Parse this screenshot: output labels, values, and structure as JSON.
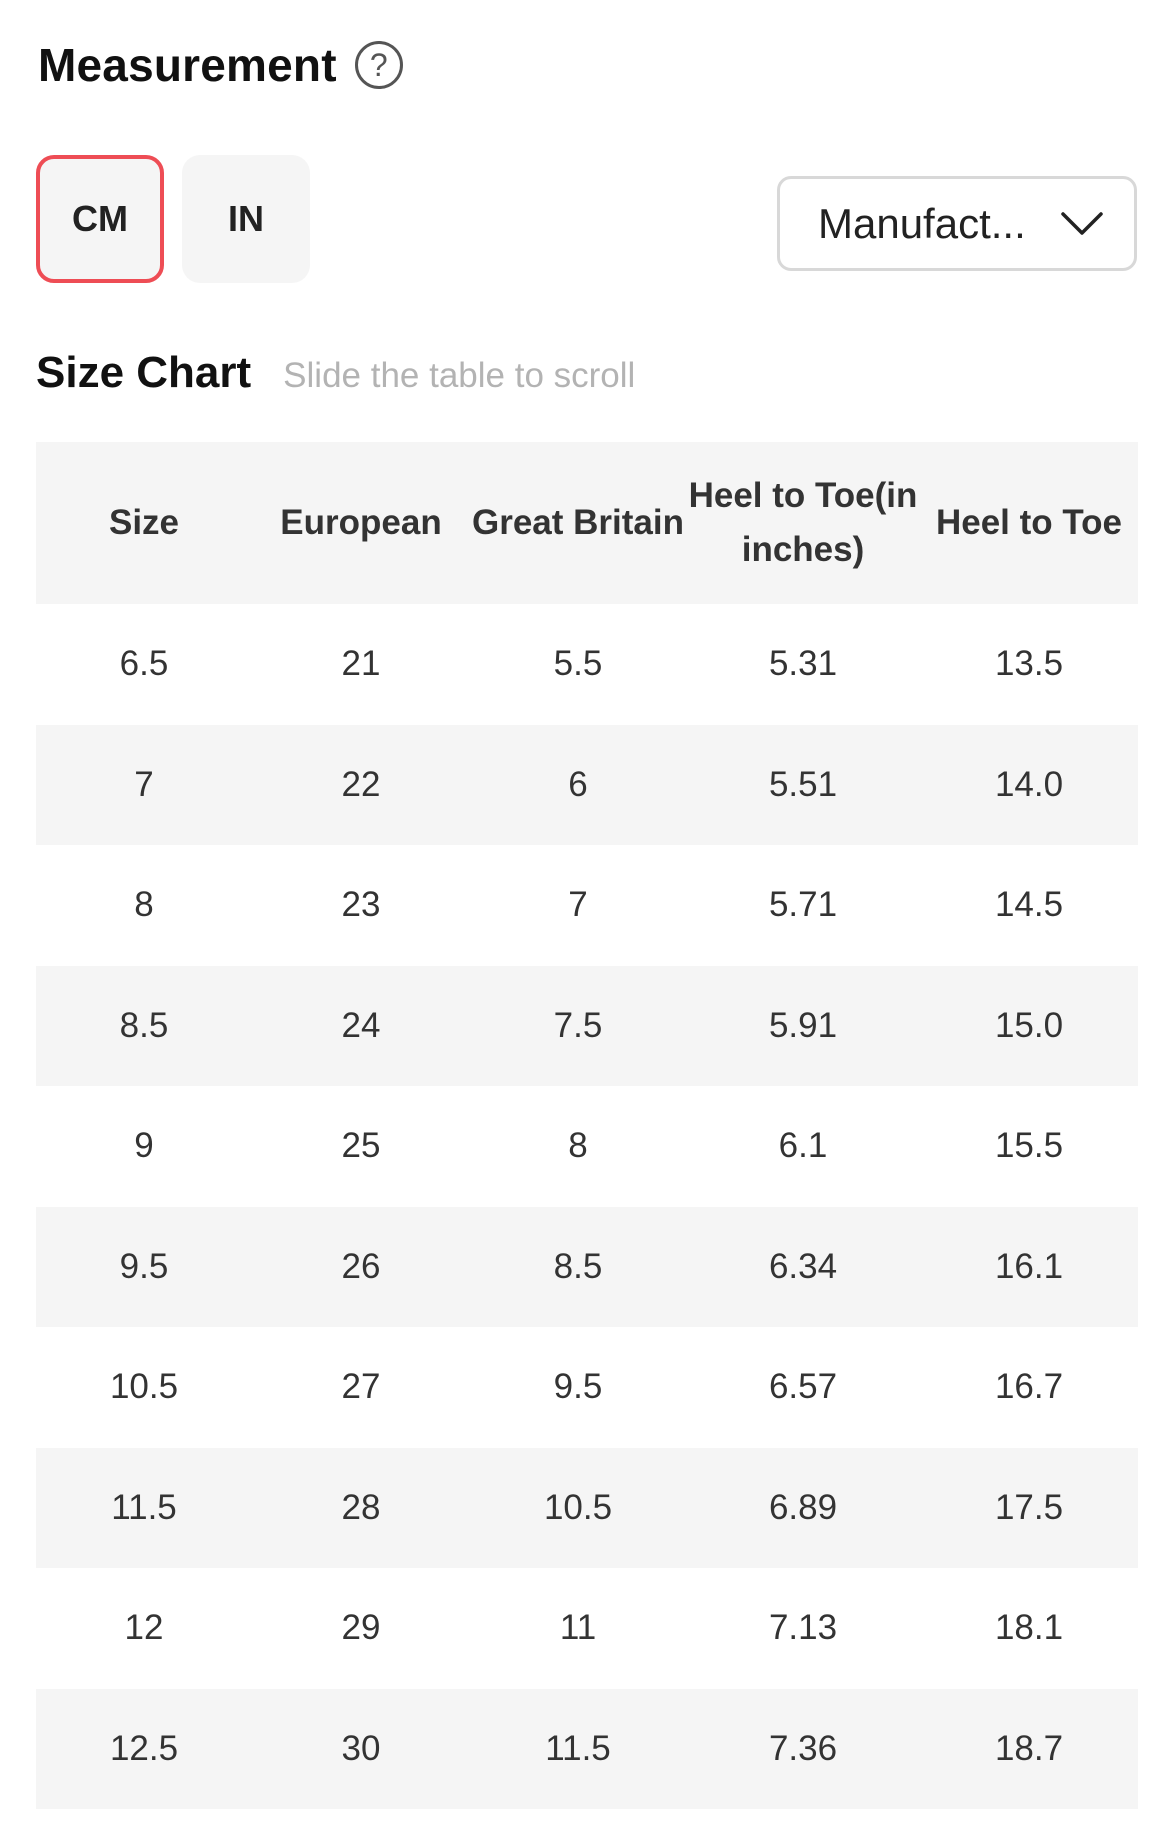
{
  "header": {
    "title": "Measurement",
    "help_icon": "?"
  },
  "units": {
    "cm_label": "CM",
    "in_label": "IN",
    "selected": "CM",
    "active_color": "#ee4d55"
  },
  "dropdown": {
    "selected_value": "Manufact..."
  },
  "size_chart": {
    "title": "Size Chart",
    "hint": "Slide the table to scroll",
    "columns": [
      "Size",
      "European",
      "Great Britain",
      "Heel to Toe(in inches)",
      "Heel to Toe"
    ],
    "rows": [
      [
        "6.5",
        "21",
        "5.5",
        "5.31",
        "13.5"
      ],
      [
        "7",
        "22",
        "6",
        "5.51",
        "14.0"
      ],
      [
        "8",
        "23",
        "7",
        "5.71",
        "14.5"
      ],
      [
        "8.5",
        "24",
        "7.5",
        "5.91",
        "15.0"
      ],
      [
        "9",
        "25",
        "8",
        "6.1",
        "15.5"
      ],
      [
        "9.5",
        "26",
        "8.5",
        "6.34",
        "16.1"
      ],
      [
        "10.5",
        "27",
        "9.5",
        "6.57",
        "16.7"
      ],
      [
        "11.5",
        "28",
        "10.5",
        "6.89",
        "17.5"
      ],
      [
        "12",
        "29",
        "11",
        "7.13",
        "18.1"
      ],
      [
        "12.5",
        "30",
        "11.5",
        "7.36",
        "18.7"
      ]
    ]
  }
}
